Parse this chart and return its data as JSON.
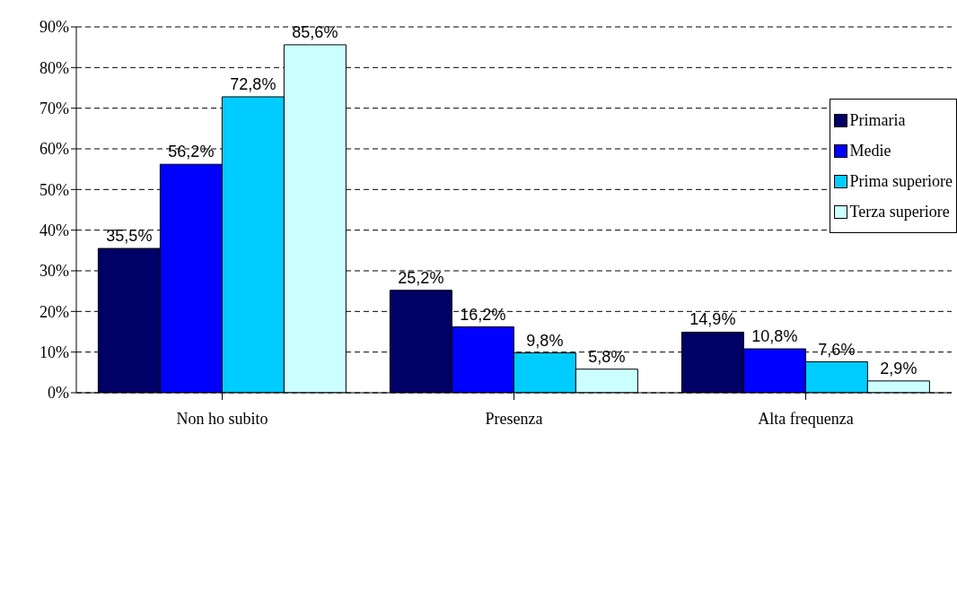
{
  "chart_data": {
    "type": "bar",
    "categories": [
      "Non ho subito",
      "Presenza",
      "Alta frequenza"
    ],
    "series": [
      {
        "name": "Primaria",
        "color": "#000066",
        "values": [
          35.5,
          25.2,
          14.9
        ],
        "value_labels": [
          "35,5%",
          "25,2%",
          "14,9%"
        ]
      },
      {
        "name": "Medie",
        "color": "#0000ff",
        "values": [
          56.2,
          16.2,
          10.8
        ],
        "value_labels": [
          "56,2%",
          "16,2%",
          "10,8%"
        ]
      },
      {
        "name": "Prima superiore",
        "color": "#00ccff",
        "values": [
          72.8,
          9.8,
          7.6
        ],
        "value_labels": [
          "72,8%",
          "9,8%",
          "7,6%"
        ]
      },
      {
        "name": "Terza superiore",
        "color": "#ccffff",
        "values": [
          85.6,
          5.8,
          2.9
        ],
        "value_labels": [
          "85,6%",
          "5,8%",
          "2,9%"
        ]
      }
    ],
    "ylim": [
      0,
      90
    ],
    "yticks": [
      {
        "value": 0,
        "label": "0%"
      },
      {
        "value": 10,
        "label": "10%"
      },
      {
        "value": 20,
        "label": "20%"
      },
      {
        "value": 30,
        "label": "30%"
      },
      {
        "value": 40,
        "label": "40%"
      },
      {
        "value": 50,
        "label": "50%"
      },
      {
        "value": 60,
        "label": "60%"
      },
      {
        "value": 70,
        "label": "70%"
      },
      {
        "value": 80,
        "label": "80%"
      },
      {
        "value": 90,
        "label": "90%"
      }
    ],
    "grid": "y",
    "legend": "top right"
  }
}
